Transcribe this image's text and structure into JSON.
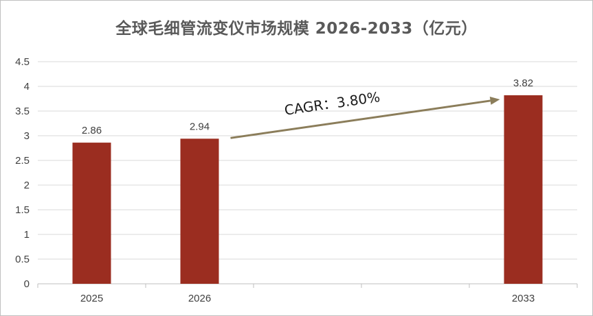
{
  "chart_data": {
    "type": "bar",
    "title": "全球毛细管流变仪市场规模 2026-2033（亿元）",
    "xlabel": "",
    "ylabel": "",
    "categories": [
      "2025",
      "2026",
      "",
      "",
      "2033"
    ],
    "values": [
      2.86,
      2.94,
      null,
      null,
      3.82
    ],
    "data_labels": [
      "2.86",
      "2.94",
      "",
      "",
      "3.82"
    ],
    "ylim": [
      0,
      4.5
    ],
    "yticks": [
      "0",
      "0.5",
      "1",
      "1.5",
      "2",
      "2.5",
      "3",
      "3.5",
      "4",
      "4.5"
    ],
    "grid": true,
    "legend": "none",
    "bar_color": "#9b2d20",
    "annotation": {
      "text": "CAGR：3.80%",
      "from_category": "2026",
      "to_category": "2033",
      "arrow_color": "#8b7d5a"
    }
  }
}
